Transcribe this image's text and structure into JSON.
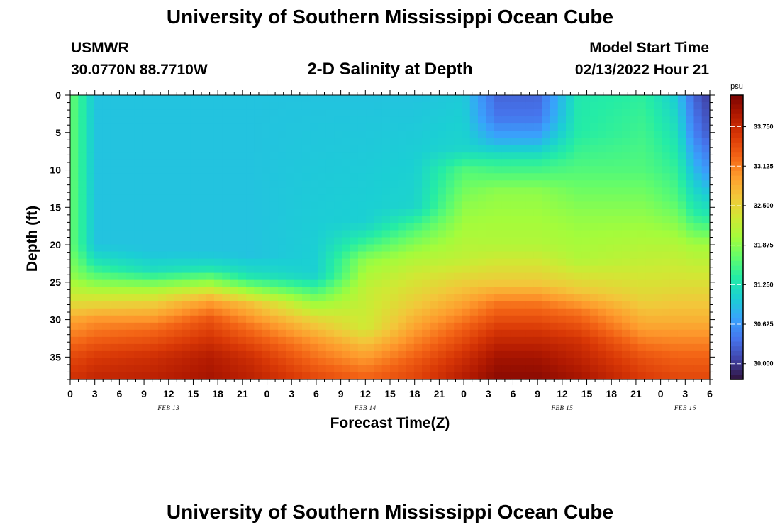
{
  "header": {
    "title": "University of Southern Mississippi Ocean Cube",
    "station": "USMWR",
    "coords": "30.0770N  88.7710W",
    "subtitle": "2-D Salinity at Depth",
    "model_start_label": "Model Start Time",
    "model_start_value": "02/13/2022 Hour 21"
  },
  "footer": {
    "title": "University of Southern Mississippi Ocean Cube"
  },
  "chart_data": {
    "type": "heatmap",
    "title": "2-D Salinity at Depth",
    "xlabel": "Forecast Time(Z)",
    "ylabel": "Depth (ft)",
    "xlim": [
      0,
      78
    ],
    "ylim": [
      38,
      0
    ],
    "x_tick_labels": [
      "0",
      "3",
      "6",
      "9",
      "12",
      "15",
      "18",
      "21",
      "0",
      "3",
      "6",
      "9",
      "12",
      "15",
      "18",
      "21",
      "0",
      "3",
      "6",
      "9",
      "12",
      "15",
      "18",
      "21",
      "0",
      "3",
      "6"
    ],
    "date_labels": [
      {
        "label": "FEB 13",
        "hour": 12
      },
      {
        "label": "FEB 14",
        "hour": 36
      },
      {
        "label": "FEB 15",
        "hour": 60
      },
      {
        "label": "FEB 16",
        "hour": 75
      }
    ],
    "y_ticks": [
      0,
      5,
      10,
      15,
      20,
      25,
      30,
      35
    ],
    "colorbar": {
      "unit": "psu",
      "min": 29.75,
      "max": 34.25,
      "labels": [
        "33.750",
        "33.125",
        "32.500",
        "31.875",
        "31.250",
        "30.625",
        "30.000"
      ],
      "colors": [
        "#30123b",
        "#4145ab",
        "#4675ed",
        "#39a2fc",
        "#1bcfd4",
        "#24eca6",
        "#61fc6c",
        "#a4fc3b",
        "#d1e834",
        "#f3c63a",
        "#fe9b2d",
        "#f36315",
        "#d93806",
        "#b11901",
        "#7a0402"
      ]
    },
    "profiles_note": "salinity (psu) by forecast hour (x) and depth in ft (y)",
    "profiles": [
      {
        "hour": 0,
        "points": [
          [
            0,
            31.7
          ],
          [
            20,
            31.7
          ],
          [
            24,
            31.9
          ],
          [
            27,
            32.3
          ],
          [
            30,
            32.9
          ],
          [
            35,
            33.5
          ],
          [
            38,
            33.7
          ]
        ]
      },
      {
        "hour": 1,
        "points": [
          [
            0,
            31.5
          ],
          [
            20,
            31.5
          ],
          [
            24,
            31.8
          ],
          [
            27,
            32.3
          ],
          [
            30,
            32.9
          ],
          [
            35,
            33.5
          ],
          [
            38,
            33.7
          ]
        ]
      },
      {
        "hour": 3,
        "points": [
          [
            0,
            30.95
          ],
          [
            20,
            30.95
          ],
          [
            22,
            31.2
          ],
          [
            24,
            31.6
          ],
          [
            27,
            32.3
          ],
          [
            30,
            33.0
          ],
          [
            35,
            33.6
          ],
          [
            38,
            33.8
          ]
        ]
      },
      {
        "hour": 10,
        "points": [
          [
            0,
            30.95
          ],
          [
            21,
            30.95
          ],
          [
            23.5,
            31.2
          ],
          [
            25.5,
            31.9
          ],
          [
            28,
            32.6
          ],
          [
            31,
            33.2
          ],
          [
            35,
            33.7
          ],
          [
            38,
            33.85
          ]
        ]
      },
      {
        "hour": 17,
        "points": [
          [
            0,
            30.95
          ],
          [
            21,
            30.95
          ],
          [
            23,
            31.2
          ],
          [
            25,
            31.9
          ],
          [
            27.5,
            32.9
          ],
          [
            30,
            33.4
          ],
          [
            35,
            33.9
          ],
          [
            38,
            34.0
          ]
        ]
      },
      {
        "hour": 22,
        "points": [
          [
            0,
            30.95
          ],
          [
            21.5,
            30.95
          ],
          [
            24,
            31.2
          ],
          [
            26,
            31.9
          ],
          [
            28,
            32.7
          ],
          [
            31,
            33.2
          ],
          [
            35,
            33.7
          ],
          [
            38,
            33.85
          ]
        ]
      },
      {
        "hour": 30,
        "points": [
          [
            0,
            30.95
          ],
          [
            24,
            31.05
          ],
          [
            26,
            31.5
          ],
          [
            28,
            32.0
          ],
          [
            30,
            32.5
          ],
          [
            33,
            33.0
          ],
          [
            36,
            33.3
          ],
          [
            38,
            33.5
          ]
        ]
      },
      {
        "hour": 36,
        "points": [
          [
            0,
            30.95
          ],
          [
            17,
            31.05
          ],
          [
            20,
            31.5
          ],
          [
            22,
            31.9
          ],
          [
            26,
            32.2
          ],
          [
            31,
            32.3
          ],
          [
            34,
            32.8
          ],
          [
            37,
            33.2
          ],
          [
            38,
            33.3
          ]
        ]
      },
      {
        "hour": 42,
        "points": [
          [
            0,
            30.95
          ],
          [
            15,
            31.1
          ],
          [
            18,
            31.6
          ],
          [
            21,
            32.0
          ],
          [
            24,
            32.3
          ],
          [
            28,
            32.6
          ],
          [
            32,
            33.0
          ],
          [
            36,
            33.4
          ],
          [
            38,
            33.5
          ]
        ]
      },
      {
        "hour": 48,
        "points": [
          [
            0,
            31.0
          ],
          [
            7,
            31.1
          ],
          [
            10,
            31.6
          ],
          [
            15,
            31.9
          ],
          [
            22,
            32.2
          ],
          [
            27,
            32.8
          ],
          [
            31,
            33.3
          ],
          [
            35,
            33.7
          ],
          [
            38,
            33.9
          ]
        ]
      },
      {
        "hour": 52,
        "points": [
          [
            0,
            30.3
          ],
          [
            3,
            30.4
          ],
          [
            6,
            30.8
          ],
          [
            9,
            31.4
          ],
          [
            13,
            31.9
          ],
          [
            20,
            32.1
          ],
          [
            25,
            32.6
          ],
          [
            28,
            33.2
          ],
          [
            32,
            33.7
          ],
          [
            35,
            34.0
          ],
          [
            38,
            34.15
          ]
        ]
      },
      {
        "hour": 57,
        "points": [
          [
            0,
            30.3
          ],
          [
            3,
            30.4
          ],
          [
            6,
            30.8
          ],
          [
            9,
            31.4
          ],
          [
            13,
            31.9
          ],
          [
            20,
            32.1
          ],
          [
            25,
            32.6
          ],
          [
            28,
            33.2
          ],
          [
            32,
            33.7
          ],
          [
            35,
            34.0
          ],
          [
            38,
            34.15
          ]
        ]
      },
      {
        "hour": 62,
        "points": [
          [
            0,
            31.3
          ],
          [
            5,
            31.35
          ],
          [
            10,
            31.6
          ],
          [
            16,
            31.9
          ],
          [
            22,
            32.1
          ],
          [
            26,
            32.6
          ],
          [
            29,
            33.2
          ],
          [
            33,
            33.7
          ],
          [
            38,
            34.0
          ]
        ]
      },
      {
        "hour": 70,
        "points": [
          [
            0,
            31.4
          ],
          [
            10,
            31.6
          ],
          [
            16,
            31.9
          ],
          [
            22,
            32.2
          ],
          [
            27,
            32.5
          ],
          [
            31,
            32.9
          ],
          [
            35,
            33.4
          ],
          [
            38,
            33.6
          ]
        ]
      },
      {
        "hour": 74,
        "points": [
          [
            0,
            31.0
          ],
          [
            7,
            31.3
          ],
          [
            14,
            31.6
          ],
          [
            20,
            32.1
          ],
          [
            25,
            32.4
          ],
          [
            30,
            32.8
          ],
          [
            35,
            33.3
          ],
          [
            38,
            33.5
          ]
        ]
      },
      {
        "hour": 76,
        "points": [
          [
            0,
            30.3
          ],
          [
            5,
            30.5
          ],
          [
            10,
            30.9
          ],
          [
            16,
            31.4
          ],
          [
            20,
            32.0
          ],
          [
            25,
            32.4
          ],
          [
            30,
            32.8
          ],
          [
            35,
            33.3
          ],
          [
            38,
            33.5
          ]
        ]
      },
      {
        "hour": 78,
        "points": [
          [
            0,
            30.0
          ],
          [
            5,
            30.2
          ],
          [
            10,
            30.6
          ],
          [
            16,
            31.3
          ],
          [
            20,
            32.0
          ],
          [
            25,
            32.4
          ],
          [
            30,
            32.8
          ],
          [
            35,
            33.3
          ],
          [
            38,
            33.5
          ]
        ]
      }
    ]
  }
}
